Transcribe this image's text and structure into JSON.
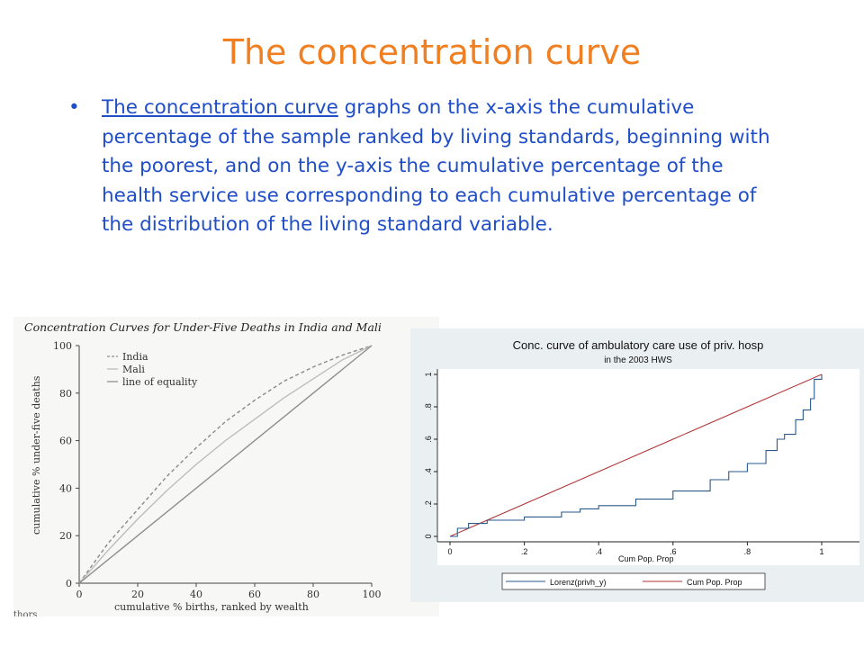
{
  "slide": {
    "title": "The concentration curve",
    "bullet": {
      "link_text": "The concentration curve",
      "rest_text": " graphs on the x-axis the cumulative percentage of the sample ranked by living standards, beginning with the poorest, and on the y-axis the cumulative percentage of the health service use corresponding to each cumulative percentage of the distribution of the living standard variable."
    },
    "colors": {
      "title": "#f07f21",
      "text": "#1f4ec8"
    }
  },
  "chart_data": [
    {
      "type": "line",
      "title": "Concentration Curves for Under-Five Deaths in India and Mali",
      "xlabel": "cumulative % births, ranked by wealth",
      "ylabel": "cumulative % under-five deaths",
      "xlim": [
        0,
        100
      ],
      "ylim": [
        0,
        100
      ],
      "xticks": [
        0,
        20,
        40,
        60,
        80,
        100
      ],
      "yticks": [
        0,
        20,
        40,
        60,
        80,
        100
      ],
      "legend_position": "top-left",
      "footer_text": "thors",
      "x": [
        0,
        10,
        20,
        30,
        40,
        50,
        60,
        70,
        80,
        90,
        100
      ],
      "series": [
        {
          "name": "India",
          "style": "dashed",
          "color": "#8a8a8a",
          "values": [
            0,
            17,
            31,
            45,
            57,
            68,
            77,
            85,
            91,
            96,
            100
          ]
        },
        {
          "name": "Mali",
          "style": "solid-light",
          "color": "#bdbdbd",
          "values": [
            0,
            14,
            27,
            39,
            50,
            60,
            69,
            78,
            86,
            94,
            100
          ]
        },
        {
          "name": "line of equality",
          "style": "solid",
          "color": "#8f8f8f",
          "values": [
            0,
            10,
            20,
            30,
            40,
            50,
            60,
            70,
            80,
            90,
            100
          ]
        }
      ]
    },
    {
      "type": "line",
      "title": "Conc. curve of ambulatory care use of priv. hosp",
      "subtitle": "in the 2003 HWS",
      "xlabel": "Cum Pop. Prop",
      "ylabel": "",
      "xlim": [
        0,
        1
      ],
      "ylim": [
        0,
        1
      ],
      "xticks": [
        "0",
        ".2",
        ".4",
        ".6",
        ".8",
        "1"
      ],
      "yticks": [
        "0",
        ".2",
        ".4",
        ".6",
        ".8",
        "1"
      ],
      "legend_position": "bottom",
      "x": [
        0.0,
        0.02,
        0.05,
        0.1,
        0.2,
        0.3,
        0.35,
        0.4,
        0.5,
        0.6,
        0.7,
        0.75,
        0.8,
        0.85,
        0.88,
        0.9,
        0.93,
        0.95,
        0.97,
        0.98,
        1.0
      ],
      "series": [
        {
          "name": "Lorenz(privh_y)",
          "color": "#2b5a8c",
          "values": [
            0.0,
            0.05,
            0.08,
            0.1,
            0.12,
            0.15,
            0.17,
            0.19,
            0.23,
            0.28,
            0.35,
            0.4,
            0.45,
            0.53,
            0.6,
            0.63,
            0.72,
            0.78,
            0.85,
            0.97,
            1.0
          ]
        },
        {
          "name": "Cum Pop. Prop",
          "color": "#b03030",
          "values": [
            0.0,
            0.02,
            0.05,
            0.1,
            0.2,
            0.3,
            0.35,
            0.4,
            0.5,
            0.6,
            0.7,
            0.75,
            0.8,
            0.85,
            0.88,
            0.9,
            0.93,
            0.95,
            0.97,
            0.98,
            1.0
          ]
        }
      ]
    }
  ]
}
